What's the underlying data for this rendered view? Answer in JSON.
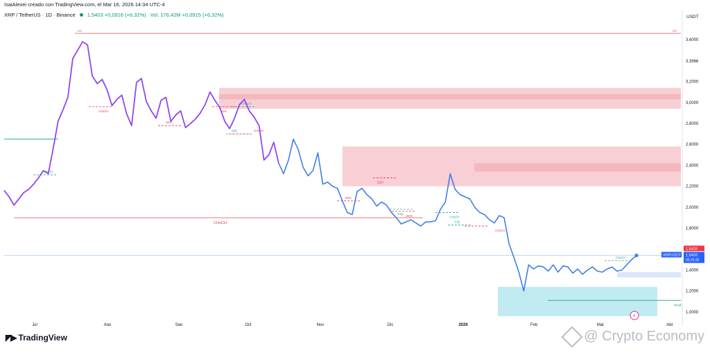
{
  "header": {
    "credit": "IsaiAlexei creado con TradingView.com, el Mar 16, 2026 14:34 UTC-4"
  },
  "legend": {
    "symbol": "XRP / TetherUS · 1D · Binance",
    "change": "1,5403 +0,0916 (+6,32%)",
    "volume": "Vol. 176,42M +0,0915 (+6,32%)"
  },
  "colors": {
    "price_up": "#9146ee",
    "price_down": "#3f7ee5",
    "resistance_zone": "#f7c7cc",
    "resistance_line": "#e57a82",
    "support_zone": "#b6e8ef",
    "support_line": "#2aa89a",
    "ema_blue": "#3b82f6",
    "label_red": "#f23645",
    "label_blue": "#2962ff"
  },
  "chart_data": {
    "type": "line",
    "title": "",
    "xlabel": "",
    "ylabel": "USDT",
    "ylim": [
      0.92,
      3.78
    ],
    "x_ticks": [
      "Jul",
      "Ago",
      "Sep",
      "Oct",
      "Nov",
      "Dic",
      "2026",
      "Feb",
      "Mar",
      "Abr"
    ],
    "y_ticks": [
      "3,6000",
      "3,3966",
      "3,2000",
      "3,0000",
      "2,8000",
      "2,6000",
      "2,4000",
      "2,2000",
      "2,0000",
      "1,8000",
      "1,4000",
      "1,2000",
      "1,0000"
    ],
    "series": [
      {
        "name": "XRPUSDT",
        "values": [
          2.16,
          2.1,
          2.02,
          2.08,
          2.14,
          2.17,
          2.22,
          2.28,
          2.35,
          2.32,
          2.56,
          2.82,
          2.93,
          3.05,
          3.42,
          3.5,
          3.58,
          3.55,
          3.25,
          3.18,
          3.22,
          3.12,
          2.97,
          3.03,
          3.07,
          2.89,
          2.78,
          3.19,
          3.23,
          3.01,
          2.92,
          2.85,
          3.02,
          3.05,
          2.82,
          2.88,
          2.92,
          2.76,
          2.8,
          2.84,
          2.9,
          2.98,
          3.1,
          3.02,
          2.95,
          2.82,
          2.75,
          2.85,
          2.98,
          3.03,
          2.92,
          2.86,
          2.78,
          2.45,
          2.5,
          2.62,
          2.42,
          2.32,
          2.45,
          2.65,
          2.55,
          2.38,
          2.3,
          2.35,
          2.52,
          2.22,
          2.24,
          2.2,
          2.18,
          2.06,
          1.95,
          1.93,
          2.15,
          2.18,
          2.12,
          2.08,
          2.01,
          2.05,
          2.02,
          1.95,
          1.9,
          1.84,
          1.86,
          1.88,
          1.85,
          1.82,
          1.86,
          1.86,
          1.87,
          1.98,
          2.05,
          2.32,
          2.17,
          2.12,
          2.1,
          2.08,
          2.0,
          1.95,
          1.93,
          1.88,
          1.85,
          1.92,
          1.9,
          1.65,
          1.52,
          1.38,
          1.2,
          1.45,
          1.41,
          1.44,
          1.43,
          1.39,
          1.45,
          1.38,
          1.44,
          1.43,
          1.37,
          1.41,
          1.36,
          1.4,
          1.43,
          1.39,
          1.38,
          1.41,
          1.43,
          1.39,
          1.4,
          1.45,
          1.5,
          1.54
        ]
      }
    ],
    "current_price": 1.5403,
    "price_labels": [
      "1,5403",
      "XRPUSDT",
      "1,5403",
      "05:25:35"
    ],
    "zones": [
      {
        "name": "resistance-zone-upper",
        "from": 2.94,
        "to": 3.14
      },
      {
        "name": "resistance-zone-mid",
        "from": 2.2,
        "to": 2.58
      },
      {
        "name": "support-zone-lower",
        "from": 0.96,
        "to": 1.24
      },
      {
        "name": "demand-strip",
        "from": 1.33,
        "to": 1.38
      }
    ],
    "levels": [
      {
        "name": "bsl-top-line",
        "value": 3.66,
        "left_label": "Bsl",
        "right_label": "Bsl"
      },
      {
        "name": "choch-line",
        "value": 1.9,
        "label": "CHoCH"
      },
      {
        "name": "weak-low-line",
        "value": 1.11,
        "label": "Weak"
      }
    ],
    "annotations": [
      "CHoCH",
      "CHoCH",
      "CHoCH",
      "CHoCH",
      "BOS",
      "BOS",
      "BOS",
      "BOS",
      "EQL",
      "EQL",
      "EQL",
      "EQH",
      "CHoCH",
      "CHoCH",
      "CHoCH"
    ]
  },
  "footer": {
    "tradingview": "TradingView",
    "watermark": "@ Crypto Economy"
  }
}
